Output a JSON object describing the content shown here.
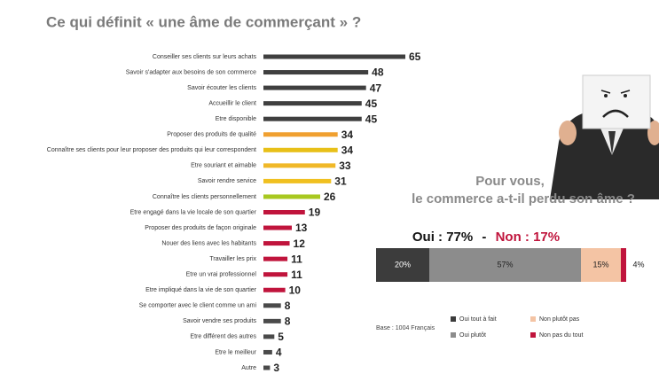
{
  "chart_data": [
    {
      "type": "hbar",
      "title": "Ce qui définit « une âme de commerçant » ?",
      "categories": [
        "Conseiller ses clients sur leurs achats",
        "Savoir s'adapter aux besoins de son commerce",
        "Savoir écouter les clients",
        "Accueillir le client",
        "Etre disponible",
        "Proposer des produits de qualité",
        "Connaître ses clients pour leur proposer des produits qui leur correspondent",
        "Etre souriant et aimable",
        "Savoir rendre service",
        "Connaître les clients personnellement",
        "Etre engagé dans la vie locale de son quartier",
        "Proposer des produits de façon originale",
        "Nouer des liens avec les habitants",
        "Travailler les prix",
        "Etre un vrai professionnel",
        "Etre impliqué dans la vie de son quartier",
        "Se comporter avec le client comme un ami",
        "Savoir vendre ses produits",
        "Etre différent des autres",
        "Etre le meilleur",
        "Autre"
      ],
      "values": [
        65,
        48,
        47,
        45,
        45,
        34,
        34,
        33,
        31,
        26,
        19,
        13,
        12,
        11,
        11,
        10,
        8,
        8,
        5,
        4,
        3
      ],
      "colors": [
        "#3f3f3f",
        "#3f3f3f",
        "#3f3f3f",
        "#3f3f3f",
        "#3f3f3f",
        "#f0a030",
        "#e8c018",
        "#f0b828",
        "#f0c020",
        "#a8c820",
        "#c0143c",
        "#c0143c",
        "#c0143c",
        "#c0143c",
        "#c0143c",
        "#c0143c",
        "#4a4a4a",
        "#4a4a4a",
        "#4a4a4a",
        "#4a4a4a",
        "#4a4a4a"
      ]
    },
    {
      "type": "stacked-hbar",
      "title": "Pour vous, le commerce a-t-il perdu son âme ?",
      "headline": {
        "yes": "Oui : 77%",
        "separator": "-",
        "no": "Non : 17%"
      },
      "note": "Base : 1004 Français",
      "series": [
        {
          "name": "Oui tout à fait",
          "color": "#3c3c3c",
          "values": [
            20
          ],
          "value_labels": [
            "20%"
          ]
        },
        {
          "name": "Oui plutôt",
          "color": "#8c8c8c",
          "values": [
            57
          ],
          "value_labels": [
            "57%"
          ]
        },
        {
          "name": "Non plutôt pas",
          "color": "#f4c4a4",
          "values": [
            15
          ],
          "value_labels": [
            "15%"
          ]
        },
        {
          "name": "Non pas du tout",
          "color": "#c0143c",
          "values": [
            2
          ]
        },
        {
          "color": "#ffffff",
          "values": [
            4
          ],
          "value_labels": [
            "4%"
          ]
        }
      ]
    }
  ]
}
